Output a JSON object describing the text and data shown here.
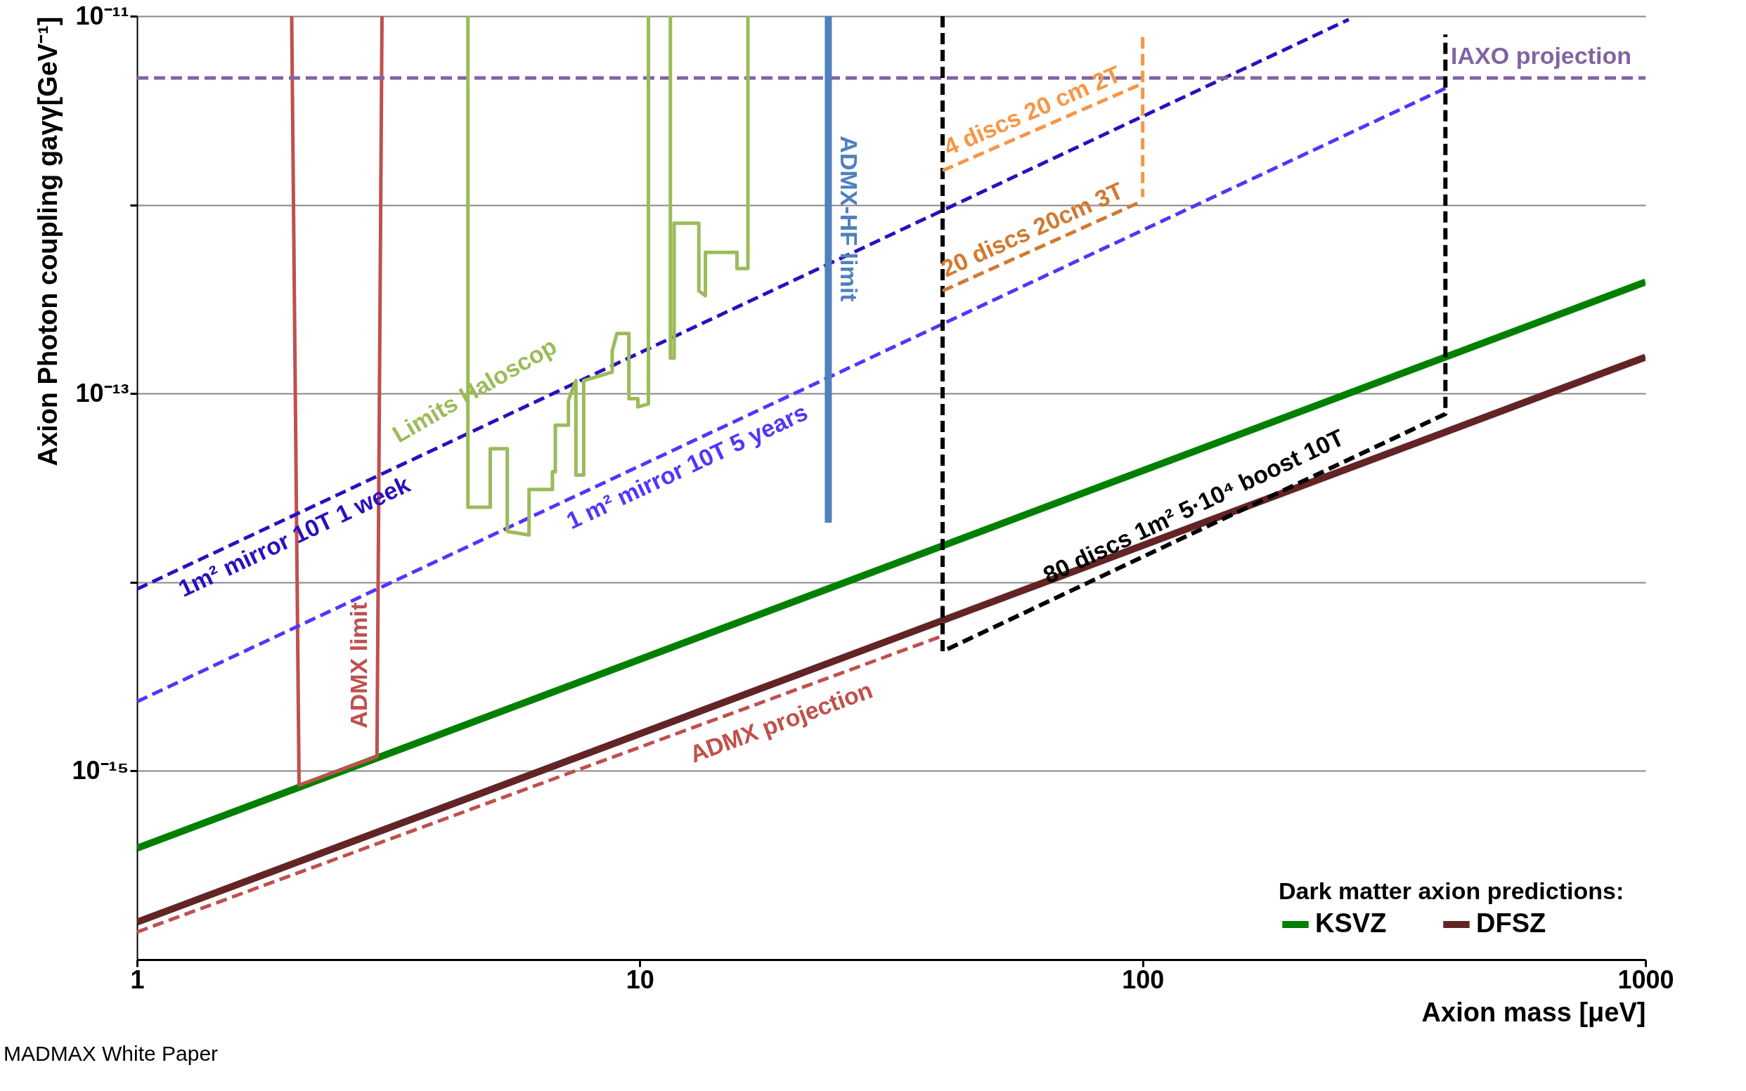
{
  "chart_data": {
    "type": "line",
    "xlabel": "Axion mass [μeV]",
    "ylabel": "Axion Photon coupling gaγγ[GeV⁻¹]",
    "legend_title": "Dark matter axion predictions:",
    "legend": "bottom right",
    "grid": "y",
    "log": "xy",
    "xlim": [
      1,
      1000
    ],
    "xticks": [
      1,
      10,
      100,
      1000
    ],
    "ylim": [
      1e-16,
      1e-11
    ],
    "yticks": [
      {
        "value": 1e-11,
        "label": "10⁻¹¹"
      },
      {
        "value": 1e-12,
        "label": null
      },
      {
        "value": 1e-13,
        "label": "10⁻¹³"
      },
      {
        "value": 1e-14,
        "label": null
      },
      {
        "value": 1e-15,
        "label": "10⁻¹⁵"
      }
    ],
    "annotations": [
      "MADMAX White Paper"
    ],
    "series": [
      {
        "name": "KSVZ",
        "color": "#008000",
        "line_style": "solid",
        "x": [
          1,
          1000
        ],
        "values": [
          3.9e-16,
          3.9e-13
        ]
      },
      {
        "name": "DFSZ",
        "color": "#622424",
        "line_style": "solid",
        "x": [
          1,
          1000
        ],
        "values": [
          1.58e-16,
          1.56e-13
        ]
      },
      {
        "name": "ADMX projection",
        "color": "#c0504d",
        "line_style": "dashed",
        "x": [
          1,
          40,
          40
        ],
        "values": [
          1.4e-16,
          5.2e-15,
          9.5e-15
        ]
      },
      {
        "name": "ADMX limit",
        "color": "#c0504d",
        "line_style": "solid",
        "x": [
          2.03,
          2.1,
          3.0,
          3.07
        ],
        "values": [
          1e-11,
          8.4e-16,
          1.19e-15,
          1e-11
        ]
      },
      {
        "name": "1m² mirror 10T 1 week",
        "color": "#2a0fc0",
        "line_style": "dashed",
        "x": [
          1,
          257
        ],
        "values": [
          9.2e-15,
          9.6e-12
        ]
      },
      {
        "name": "1 m² mirror 10T 5 years",
        "color": "#5533ff",
        "line_style": "dashed",
        "x": [
          1,
          404
        ],
        "values": [
          2.33e-15,
          4.2e-12
        ]
      },
      {
        "name": "IAXO projection",
        "color": "#8064a2",
        "line_style": "dashed",
        "x": [
          1,
          1000
        ],
        "values": [
          4.7e-12,
          4.7e-12
        ]
      },
      {
        "name": "80 discs 1m² 5·10⁴ boost 10T",
        "color": "#000000",
        "line_style": "dashed",
        "x": [
          40,
          40,
          400,
          400
        ],
        "values": [
          1e-11,
          4.3e-15,
          7.8e-14,
          8e-12
        ]
      },
      {
        "name": "4 discs 20 cm 2T",
        "color": "#f79646",
        "line_style": "dashed",
        "x": [
          40,
          100,
          100,
          100
        ],
        "values": [
          1.52e-12,
          4.4e-12,
          8e-12,
          1.1e-12
        ]
      },
      {
        "name": "20 discs 20cm 3T",
        "color": "#d07a30",
        "line_style": "dashed",
        "x": [
          40,
          100
        ],
        "values": [
          3.5e-13,
          1.05e-12
        ]
      },
      {
        "name": "ADMX-HF limit",
        "color": "#4f81bd",
        "line_style": "solid",
        "x": [
          23.7,
          23.7
        ],
        "values": [
          1e-11,
          2.07e-14
        ]
      },
      {
        "name": "Limits Haloscop",
        "color": "#9bbb59",
        "line_style": "solid",
        "x": [
          4.55,
          4.55,
          5.04,
          5.04,
          5.45,
          5.45,
          6.02,
          6.02,
          6.7,
          6.7,
          6.79,
          6.79,
          7.21,
          7.21,
          7.46,
          7.46,
          7.73,
          7.73,
          8.81,
          8.81,
          9.0,
          9.51,
          9.51,
          9.91,
          9.91,
          10.4,
          10.4,
          10.9,
          11.5,
          11.5,
          11.7,
          11.7,
          13.1,
          13.1,
          13.5,
          13.5,
          15.6,
          15.6,
          16.4,
          16.4
        ],
        "values": [
          1e-11,
          2.5e-14,
          2.5e-14,
          5.1e-14,
          5.1e-14,
          1.86e-14,
          1.78e-14,
          3.1e-14,
          3.1e-14,
          3.85e-14,
          3.85e-14,
          6.8e-14,
          6.8e-14,
          9.2e-14,
          1.17e-13,
          3.7e-14,
          3.7e-14,
          1.17e-13,
          1.3e-13,
          1.68e-13,
          2.08e-13,
          2.08e-13,
          9.4e-14,
          9.4e-14,
          8.5e-14,
          8.8e-14,
          1e-11,
          null,
          1e-11,
          1.54e-13,
          1.54e-13,
          8e-13,
          8e-13,
          3.5e-13,
          3.3e-13,
          5.6e-13,
          5.6e-13,
          4.6e-13,
          4.6e-13,
          1e-11
        ]
      }
    ]
  }
}
